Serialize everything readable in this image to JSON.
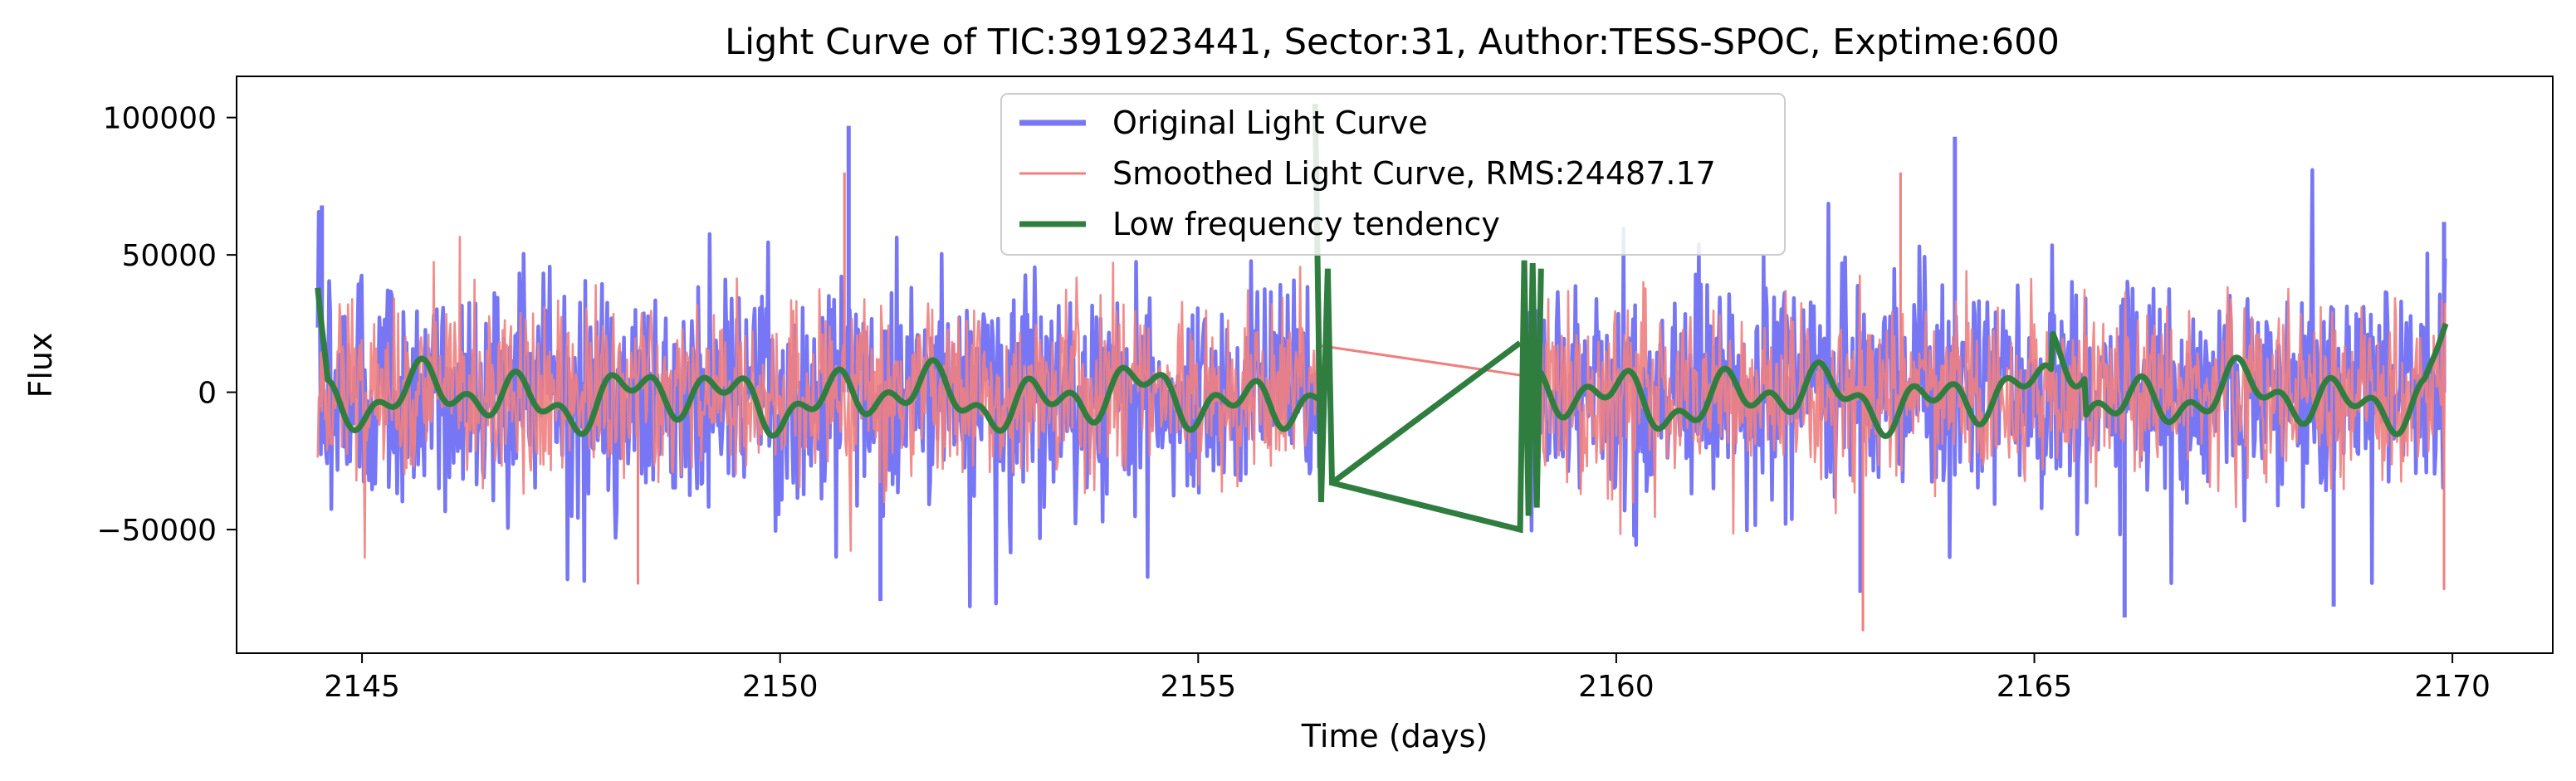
{
  "chart_data": {
    "type": "line",
    "title": "Light Curve of TIC:391923441, Sector:31, Author:TESS-SPOC, Exptime:600",
    "xlabel": "Time (days)",
    "ylabel": "Flux",
    "xlim": [
      2143.5,
      2171.2
    ],
    "ylim": [
      -95000,
      115000
    ],
    "x_ticks": [
      2145,
      2150,
      2155,
      2160,
      2165,
      2170
    ],
    "x_tick_labels": [
      "2145",
      "2150",
      "2155",
      "2160",
      "2165",
      "2170"
    ],
    "y_ticks": [
      -50000,
      0,
      50000,
      100000
    ],
    "y_tick_labels": [
      "−50000",
      "0",
      "50000",
      "100000"
    ],
    "grid": false,
    "legend_position": "top-center",
    "segments": [
      {
        "x_start": 2144.47,
        "x_end": 2156.45
      },
      {
        "x_start": 2158.9,
        "x_end": 2169.92
      }
    ],
    "series": [
      {
        "name": "Original Light Curve",
        "color": "#7777f5",
        "style": "noisy",
        "amplitude": 42000,
        "peak_points": [
          [
            2150.82,
            97000
          ],
          [
            2164.05,
            93000
          ],
          [
            2144.52,
            68000
          ],
          [
            2169.9,
            62000
          ],
          [
            2151.2,
            -76000
          ],
          [
            2166.08,
            -82000
          ],
          [
            2168.58,
            -78000
          ],
          [
            2162.92,
            -73000
          ]
        ]
      },
      {
        "name": "Smoothed Light Curve, RMS:24487.17",
        "color": "#f07f7f",
        "style": "noisy",
        "amplitude": 34000,
        "peak_points": [
          [
            2150.77,
            80000
          ],
          [
            2162.95,
            -87000
          ],
          [
            2163.4,
            80000
          ],
          [
            2169.9,
            -72000
          ],
          [
            2148.3,
            -70000
          ]
        ],
        "gap_line": [
          [
            2156.45,
            17000
          ],
          [
            2158.9,
            6000
          ]
        ]
      },
      {
        "name": "Low frequency tendency",
        "color": "#2f7d3f",
        "style": "smooth",
        "start_point": [
          2144.47,
          38000
        ],
        "end_point": [
          2169.92,
          25000
        ],
        "segment_edge_spikes": [
          [
            2156.4,
            105000
          ],
          [
            2156.47,
            -40000
          ],
          [
            2156.55,
            45000
          ],
          [
            2156.6,
            -33000
          ],
          [
            2158.85,
            -50000
          ],
          [
            2158.9,
            48000
          ],
          [
            2158.95,
            -45000
          ],
          [
            2159.0,
            47000
          ],
          [
            2159.05,
            -42000
          ],
          [
            2159.1,
            45000
          ]
        ],
        "gap_line": [
          [
            2156.6,
            -33000
          ],
          [
            2158.85,
            18000
          ]
        ]
      }
    ]
  }
}
